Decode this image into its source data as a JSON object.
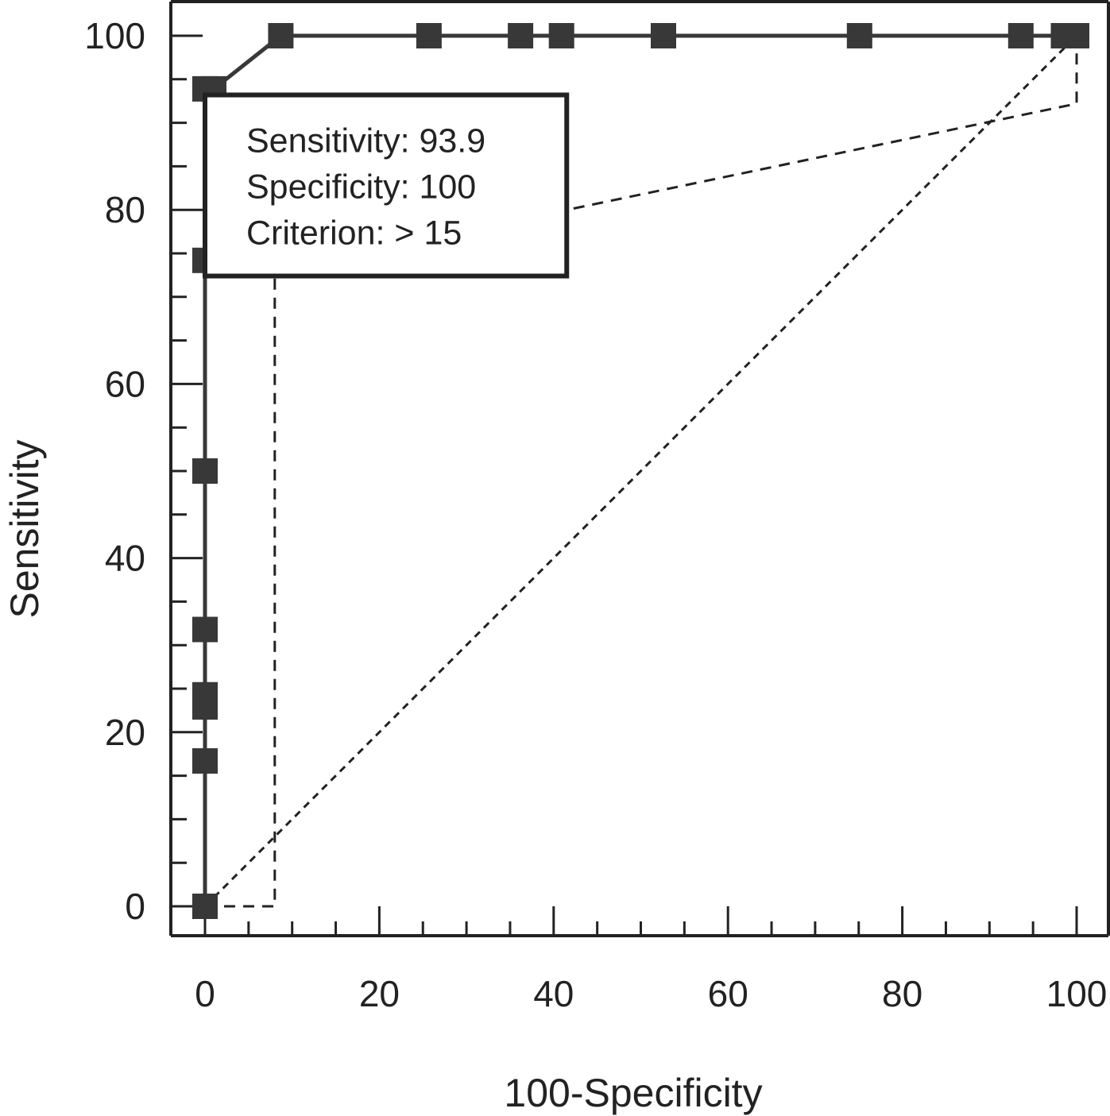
{
  "chart_data": {
    "type": "line",
    "title": "",
    "xlabel": "100-Specificity",
    "ylabel": "Sensitivity",
    "xlim": [
      0,
      100
    ],
    "ylim": [
      0,
      100
    ],
    "x_ticks": [
      "0",
      "20",
      "40",
      "60",
      "80",
      "100"
    ],
    "y_ticks": [
      "0",
      "20",
      "40",
      "60",
      "80",
      "100"
    ],
    "grid": false,
    "legend": "none",
    "series": [
      {
        "style": "solid line with square markers",
        "color": "#383838",
        "points": [
          {
            "x": 0,
            "y": 0
          },
          {
            "x": 0,
            "y": 16.7
          },
          {
            "x": 0,
            "y": 22.9
          },
          {
            "x": 0,
            "y": 24.3
          },
          {
            "x": 0,
            "y": 31.8
          },
          {
            "x": 0,
            "y": 50.0
          },
          {
            "x": 0,
            "y": 74.2
          },
          {
            "x": 0,
            "y": 93.9
          },
          {
            "x": 1.0,
            "y": 93.9
          },
          {
            "x": 8.7,
            "y": 100
          },
          {
            "x": 25.7,
            "y": 100
          },
          {
            "x": 36.2,
            "y": 100
          },
          {
            "x": 40.9,
            "y": 100
          },
          {
            "x": 52.6,
            "y": 100
          },
          {
            "x": 75.1,
            "y": 100
          },
          {
            "x": 93.6,
            "y": 100
          },
          {
            "x": 98.5,
            "y": 100
          },
          {
            "x": 100,
            "y": 100
          }
        ]
      },
      {
        "style": "dotted diagonal reference line",
        "color": "#222222",
        "points": [
          {
            "x": 0,
            "y": 0
          },
          {
            "x": 100,
            "y": 100
          }
        ]
      },
      {
        "style": "dashed confidence bound",
        "color": "#222222",
        "points": [
          {
            "x": 0,
            "y": 0
          },
          {
            "x": 8.0,
            "y": 0
          },
          {
            "x": 8.0,
            "y": 73.0
          },
          {
            "x": 100,
            "y": 92.2
          },
          {
            "x": 100,
            "y": 100
          }
        ]
      }
    ],
    "annotation": {
      "lines": [
        "Sensitivity: 93.9",
        "Specificity: 100",
        "Criterion: > 15"
      ],
      "box_range_x": [
        0,
        41.5
      ],
      "box_range_y": [
        72.4,
        93.2
      ]
    }
  }
}
